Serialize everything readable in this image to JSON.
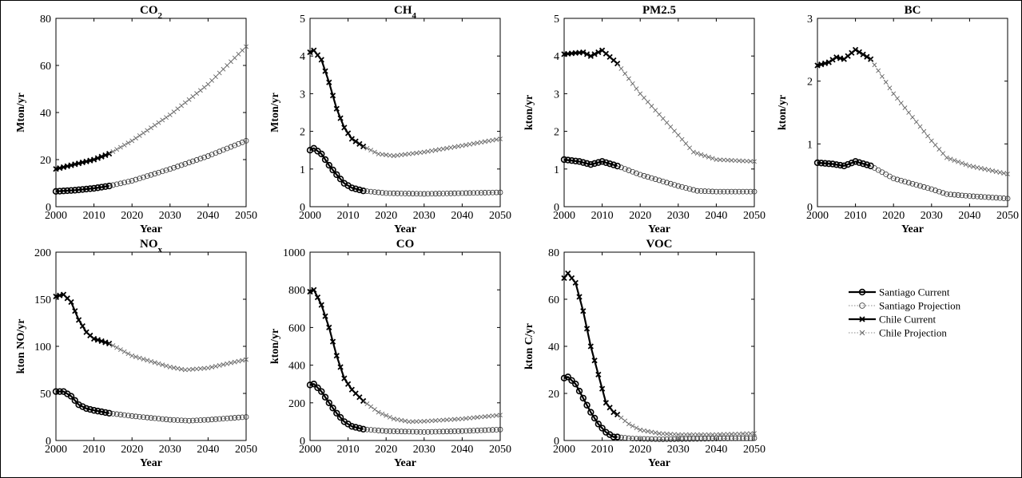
{
  "legend": {
    "entries": [
      {
        "label": "Santiago Current",
        "style": "current",
        "marker": "circle"
      },
      {
        "label": "Santiago Projection",
        "style": "projection",
        "marker": "circle"
      },
      {
        "label": "Chile Current",
        "style": "current",
        "marker": "x"
      },
      {
        "label": "Chile Projection",
        "style": "projection",
        "marker": "x"
      }
    ]
  },
  "chart_data": [
    {
      "type": "line",
      "title": "CO",
      "title_sub": "2",
      "xlabel": "Year",
      "ylabel": "Mton/yr",
      "xlim": [
        2000,
        2050
      ],
      "ylim": [
        0,
        80
      ],
      "xticks": [
        2000,
        2010,
        2020,
        2030,
        2040,
        2050
      ],
      "yticks": [
        0,
        20,
        40,
        60,
        80
      ],
      "series": [
        {
          "name": "Santiago Current",
          "points": [
            [
              2000,
              6.5
            ],
            [
              2005,
              7
            ],
            [
              2010,
              7.8
            ],
            [
              2014,
              8.8
            ]
          ]
        },
        {
          "name": "Santiago Projection",
          "points": [
            [
              2014,
              8.8
            ],
            [
              2020,
              11
            ],
            [
              2030,
              16
            ],
            [
              2040,
              21.5
            ],
            [
              2050,
              28
            ]
          ]
        },
        {
          "name": "Chile Current",
          "points": [
            [
              2000,
              16
            ],
            [
              2005,
              18
            ],
            [
              2010,
              20
            ],
            [
              2014,
              22.5
            ]
          ]
        },
        {
          "name": "Chile Projection",
          "points": [
            [
              2014,
              22.5
            ],
            [
              2020,
              28
            ],
            [
              2030,
              39
            ],
            [
              2040,
              52
            ],
            [
              2050,
              68
            ]
          ]
        }
      ]
    },
    {
      "type": "line",
      "title": "CH",
      "title_sub": "4",
      "xlabel": "Year",
      "ylabel": "Mton/yr",
      "xlim": [
        2000,
        2050
      ],
      "ylim": [
        0,
        5
      ],
      "xticks": [
        2000,
        2010,
        2020,
        2030,
        2040,
        2050
      ],
      "yticks": [
        0,
        1,
        2,
        3,
        4,
        5
      ],
      "series": [
        {
          "name": "Santiago Current",
          "points": [
            [
              2000,
              1.5
            ],
            [
              2001,
              1.55
            ],
            [
              2003,
              1.4
            ],
            [
              2005,
              1.1
            ],
            [
              2007,
              0.85
            ],
            [
              2009,
              0.62
            ],
            [
              2011,
              0.5
            ],
            [
              2014,
              0.42
            ]
          ]
        },
        {
          "name": "Santiago Projection",
          "points": [
            [
              2014,
              0.42
            ],
            [
              2020,
              0.36
            ],
            [
              2030,
              0.34
            ],
            [
              2040,
              0.36
            ],
            [
              2050,
              0.38
            ]
          ]
        },
        {
          "name": "Chile Current",
          "points": [
            [
              2000,
              4.1
            ],
            [
              2001,
              4.15
            ],
            [
              2003,
              3.9
            ],
            [
              2005,
              3.3
            ],
            [
              2007,
              2.6
            ],
            [
              2009,
              2.1
            ],
            [
              2011,
              1.8
            ],
            [
              2014,
              1.6
            ]
          ]
        },
        {
          "name": "Chile Projection",
          "points": [
            [
              2014,
              1.6
            ],
            [
              2018,
              1.4
            ],
            [
              2022,
              1.35
            ],
            [
              2030,
              1.45
            ],
            [
              2040,
              1.62
            ],
            [
              2050,
              1.8
            ]
          ]
        }
      ]
    },
    {
      "type": "line",
      "title": "PM2.5",
      "xlabel": "Year",
      "ylabel": "kton/yr",
      "xlim": [
        2000,
        2050
      ],
      "ylim": [
        0,
        5
      ],
      "xticks": [
        2000,
        2010,
        2020,
        2030,
        2040,
        2050
      ],
      "yticks": [
        0,
        1,
        2,
        3,
        4,
        5
      ],
      "series": [
        {
          "name": "Santiago Current",
          "points": [
            [
              2000,
              1.25
            ],
            [
              2004,
              1.2
            ],
            [
              2007,
              1.12
            ],
            [
              2010,
              1.2
            ],
            [
              2014,
              1.08
            ]
          ]
        },
        {
          "name": "Santiago Projection",
          "points": [
            [
              2014,
              1.08
            ],
            [
              2020,
              0.85
            ],
            [
              2030,
              0.55
            ],
            [
              2035,
              0.42
            ],
            [
              2040,
              0.4
            ],
            [
              2050,
              0.4
            ]
          ]
        },
        {
          "name": "Chile Current",
          "points": [
            [
              2000,
              4.05
            ],
            [
              2005,
              4.1
            ],
            [
              2007,
              4.0
            ],
            [
              2010,
              4.15
            ],
            [
              2014,
              3.8
            ]
          ]
        },
        {
          "name": "Chile Projection",
          "points": [
            [
              2014,
              3.8
            ],
            [
              2020,
              3.0
            ],
            [
              2030,
              1.9
            ],
            [
              2034,
              1.45
            ],
            [
              2040,
              1.25
            ],
            [
              2050,
              1.2
            ]
          ]
        }
      ]
    },
    {
      "type": "line",
      "title": "BC",
      "xlabel": "Year",
      "ylabel": "kton/yr",
      "xlim": [
        2000,
        2050
      ],
      "ylim": [
        0,
        3
      ],
      "xticks": [
        2000,
        2010,
        2020,
        2030,
        2040,
        2050
      ],
      "yticks": [
        0,
        1,
        2,
        3
      ],
      "series": [
        {
          "name": "Santiago Current",
          "points": [
            [
              2000,
              0.7
            ],
            [
              2004,
              0.68
            ],
            [
              2007,
              0.65
            ],
            [
              2010,
              0.72
            ],
            [
              2014,
              0.65
            ]
          ]
        },
        {
          "name": "Santiago Projection",
          "points": [
            [
              2014,
              0.65
            ],
            [
              2020,
              0.45
            ],
            [
              2030,
              0.28
            ],
            [
              2034,
              0.2
            ],
            [
              2040,
              0.17
            ],
            [
              2050,
              0.13
            ]
          ]
        },
        {
          "name": "Chile Current",
          "points": [
            [
              2000,
              2.25
            ],
            [
              2003,
              2.3
            ],
            [
              2005,
              2.38
            ],
            [
              2007,
              2.35
            ],
            [
              2010,
              2.5
            ],
            [
              2014,
              2.35
            ]
          ]
        },
        {
          "name": "Chile Projection",
          "points": [
            [
              2014,
              2.35
            ],
            [
              2020,
              1.8
            ],
            [
              2030,
              1.05
            ],
            [
              2034,
              0.78
            ],
            [
              2040,
              0.65
            ],
            [
              2050,
              0.52
            ]
          ]
        }
      ]
    },
    {
      "type": "line",
      "title": "NO",
      "title_sub": "x",
      "xlabel": "Year",
      "ylabel": "kton NO/yr",
      "xlim": [
        2000,
        2050
      ],
      "ylim": [
        0,
        200
      ],
      "xticks": [
        2000,
        2010,
        2020,
        2030,
        2040,
        2050
      ],
      "yticks": [
        0,
        50,
        100,
        150,
        200
      ],
      "series": [
        {
          "name": "Santiago Current",
          "points": [
            [
              2000,
              52
            ],
            [
              2002,
              52
            ],
            [
              2004,
              47
            ],
            [
              2006,
              38
            ],
            [
              2008,
              34
            ],
            [
              2010,
              32
            ],
            [
              2014,
              29
            ]
          ]
        },
        {
          "name": "Santiago Projection",
          "points": [
            [
              2014,
              29
            ],
            [
              2020,
              26
            ],
            [
              2030,
              22
            ],
            [
              2035,
              21
            ],
            [
              2040,
              22
            ],
            [
              2050,
              25
            ]
          ]
        },
        {
          "name": "Chile Current",
          "points": [
            [
              2000,
              153
            ],
            [
              2002,
              155
            ],
            [
              2004,
              147
            ],
            [
              2006,
              128
            ],
            [
              2008,
              115
            ],
            [
              2010,
              108
            ],
            [
              2014,
              103
            ]
          ]
        },
        {
          "name": "Chile Projection",
          "points": [
            [
              2014,
              103
            ],
            [
              2020,
              90
            ],
            [
              2030,
              78
            ],
            [
              2034,
              75
            ],
            [
              2040,
              77
            ],
            [
              2050,
              86
            ]
          ]
        }
      ]
    },
    {
      "type": "line",
      "title": "CO",
      "xlabel": "Year",
      "ylabel": "kton/yr",
      "xlim": [
        2000,
        2050
      ],
      "ylim": [
        0,
        1000
      ],
      "xticks": [
        2000,
        2010,
        2020,
        2030,
        2040,
        2050
      ],
      "yticks": [
        0,
        200,
        400,
        600,
        800,
        1000
      ],
      "series": [
        {
          "name": "Santiago Current",
          "points": [
            [
              2000,
              295
            ],
            [
              2001,
              300
            ],
            [
              2003,
              260
            ],
            [
              2005,
              200
            ],
            [
              2007,
              145
            ],
            [
              2009,
              100
            ],
            [
              2011,
              75
            ],
            [
              2014,
              60
            ]
          ]
        },
        {
          "name": "Santiago Projection",
          "points": [
            [
              2014,
              60
            ],
            [
              2020,
              50
            ],
            [
              2030,
              45
            ],
            [
              2040,
              50
            ],
            [
              2050,
              58
            ]
          ]
        },
        {
          "name": "Chile Current",
          "points": [
            [
              2000,
              790
            ],
            [
              2001,
              800
            ],
            [
              2003,
              720
            ],
            [
              2005,
              600
            ],
            [
              2007,
              450
            ],
            [
              2009,
              330
            ],
            [
              2011,
              270
            ],
            [
              2014,
              210
            ]
          ]
        },
        {
          "name": "Chile Projection",
          "points": [
            [
              2014,
              210
            ],
            [
              2018,
              150
            ],
            [
              2022,
              115
            ],
            [
              2026,
              100
            ],
            [
              2030,
              102
            ],
            [
              2040,
              115
            ],
            [
              2050,
              135
            ]
          ]
        }
      ]
    },
    {
      "type": "line",
      "title": "VOC",
      "xlabel": "Year",
      "ylabel": "kton C/yr",
      "xlim": [
        2000,
        2050
      ],
      "ylim": [
        0,
        80
      ],
      "xticks": [
        2000,
        2010,
        2020,
        2030,
        2040,
        2050
      ],
      "yticks": [
        0,
        20,
        40,
        60,
        80
      ],
      "series": [
        {
          "name": "Santiago Current",
          "points": [
            [
              2000,
              26.5
            ],
            [
              2001,
              27
            ],
            [
              2003,
              24
            ],
            [
              2005,
              18
            ],
            [
              2007,
              12
            ],
            [
              2009,
              7
            ],
            [
              2011,
              3.5
            ],
            [
              2013,
              1.5
            ],
            [
              2014,
              1.5
            ]
          ]
        },
        {
          "name": "Santiago Projection",
          "points": [
            [
              2014,
              1.5
            ],
            [
              2018,
              0.8
            ],
            [
              2025,
              0.5
            ],
            [
              2030,
              0.6
            ],
            [
              2040,
              0.8
            ],
            [
              2050,
              1.0
            ]
          ]
        },
        {
          "name": "Chile Current",
          "points": [
            [
              2000,
              69
            ],
            [
              2001,
              71
            ],
            [
              2003,
              67
            ],
            [
              2005,
              55
            ],
            [
              2007,
              40
            ],
            [
              2009,
              28
            ],
            [
              2011,
              16
            ],
            [
              2013,
              12
            ],
            [
              2014,
              11
            ]
          ]
        },
        {
          "name": "Chile Projection",
          "points": [
            [
              2014,
              11
            ],
            [
              2017,
              7
            ],
            [
              2020,
              4.5
            ],
            [
              2025,
              3
            ],
            [
              2030,
              2.5
            ],
            [
              2040,
              2.5
            ],
            [
              2050,
              3
            ]
          ]
        }
      ]
    }
  ]
}
